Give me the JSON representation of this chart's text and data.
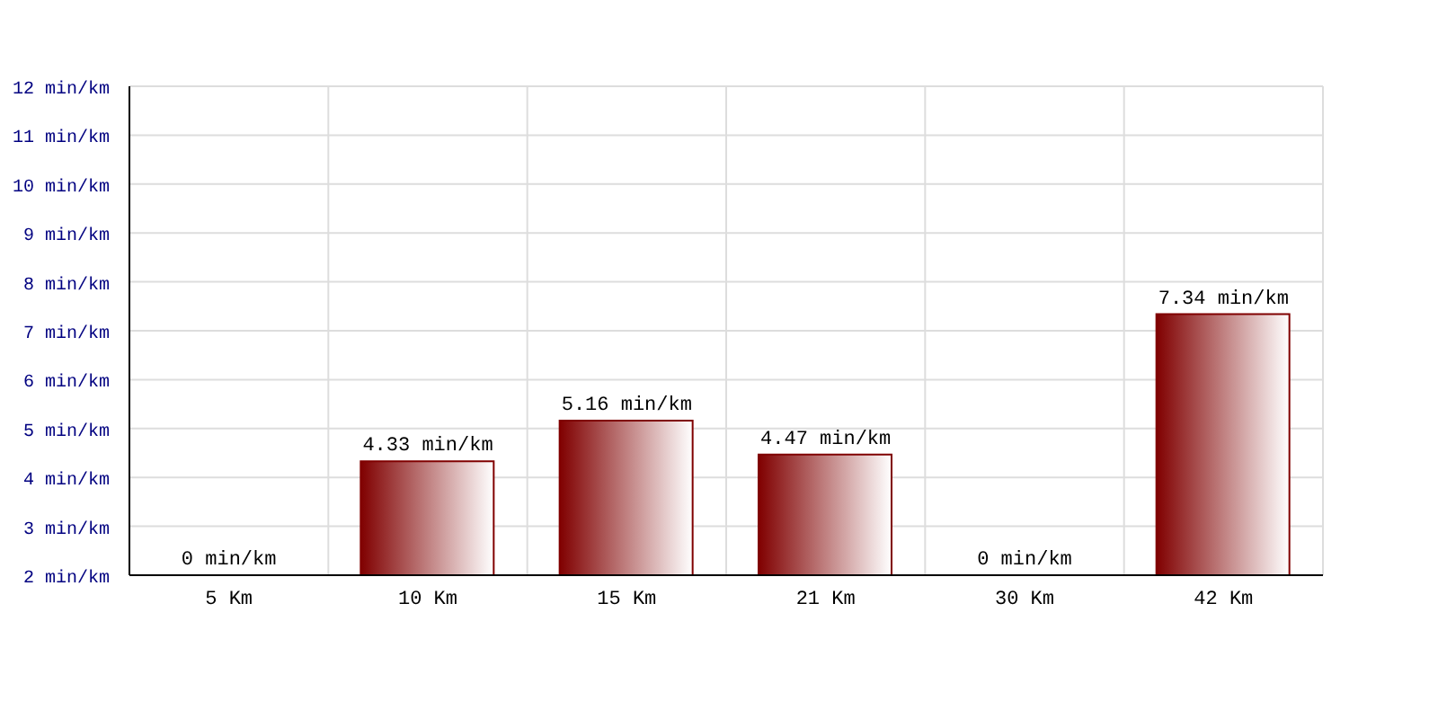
{
  "chart_data": {
    "type": "bar",
    "categories": [
      "5 Km",
      "10 Km",
      "15 Km",
      "21 Km",
      "30 Km",
      "42 Km"
    ],
    "values": [
      null,
      4.33,
      5.16,
      4.47,
      null,
      7.34
    ],
    "value_labels": [
      "0 min/km",
      "4.33 min/km",
      "5.16 min/km",
      "4.47 min/km",
      "0 min/km",
      "7.34 min/km"
    ],
    "color": "#800000",
    "ylim": [
      2,
      12
    ],
    "yticks": [
      {
        "value": 2,
        "label": "2 min/km"
      },
      {
        "value": 3,
        "label": "3 min/km"
      },
      {
        "value": 4,
        "label": "4 min/km"
      },
      {
        "value": 5,
        "label": "5 min/km"
      },
      {
        "value": 6,
        "label": "6 min/km"
      },
      {
        "value": 7,
        "label": "7 min/km"
      },
      {
        "value": 8,
        "label": "8 min/km"
      },
      {
        "value": 9,
        "label": "9 min/km"
      },
      {
        "value": 10,
        "label": "10 min/km"
      },
      {
        "value": 11,
        "label": "11 min/km"
      },
      {
        "value": 12,
        "label": "12 min/km"
      }
    ],
    "grid": true
  }
}
